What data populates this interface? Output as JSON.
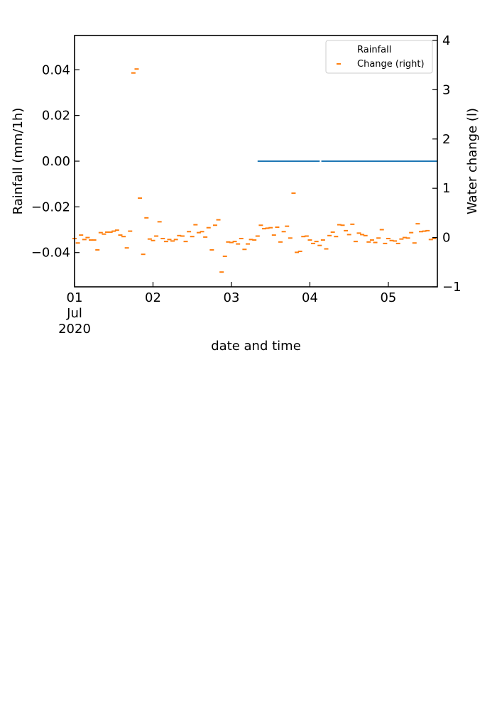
{
  "chart_data": {
    "type": "scatter",
    "title": "",
    "xlabel": "date and time",
    "x_tick_labels": [
      {
        "t": 0,
        "lines": [
          "01",
          "Jul",
          "2020"
        ]
      },
      {
        "t": 24,
        "lines": [
          "02"
        ]
      },
      {
        "t": 48,
        "lines": [
          "03"
        ]
      },
      {
        "t": 72,
        "lines": [
          "04"
        ]
      },
      {
        "t": 96,
        "lines": [
          "05"
        ]
      }
    ],
    "x_unit": "hours since 2020-07-01 00:00",
    "xlim": [
      0,
      111
    ],
    "left_axis": {
      "label": "Rainfall (mm/1h)",
      "ylim": [
        -0.055,
        0.055
      ],
      "ticks": [
        -0.04,
        -0.02,
        0.0,
        0.02,
        0.04
      ],
      "tick_labels": [
        "−0.04",
        "−0.02",
        "0.00",
        "0.02",
        "0.04"
      ]
    },
    "right_axis": {
      "label": "Water change (l)",
      "ylim": [
        -1.0,
        4.1
      ],
      "ticks": [
        -1,
        0,
        1,
        2,
        3,
        4
      ],
      "tick_labels": [
        "−1",
        "0",
        "1",
        "2",
        "3",
        "4"
      ]
    },
    "legend": {
      "position": "top-right",
      "entries": [
        {
          "label": "Rainfall",
          "marker": "none"
        },
        {
          "label": "Change (right)",
          "marker": "dash",
          "color": "#ff7f0e"
        }
      ]
    },
    "series": [
      {
        "name": "Rainfall",
        "axis": "left",
        "color": "#1f77b4",
        "segments": [
          {
            "x": [
              56,
              75
            ],
            "y": 0.0
          },
          {
            "x": [
              75.5,
              111
            ],
            "y": 0.0
          }
        ]
      },
      {
        "name": "Change (right)",
        "axis": "right",
        "color": "#ff7f0e",
        "x": [
          0,
          1,
          2,
          3,
          4,
          5,
          6,
          7,
          8,
          9,
          10,
          11,
          12,
          13,
          14,
          15,
          16,
          17,
          18,
          19,
          20,
          21,
          22,
          23,
          24,
          25,
          26,
          27,
          28,
          29,
          30,
          31,
          32,
          33,
          34,
          35,
          36,
          37,
          38,
          39,
          40,
          41,
          42,
          43,
          44,
          45,
          46,
          47,
          48,
          49,
          50,
          51,
          52,
          53,
          54,
          55,
          56,
          57,
          58,
          59,
          60,
          61,
          62,
          63,
          64,
          65,
          66,
          67,
          68,
          69,
          70,
          71,
          72,
          73,
          74,
          75,
          76,
          77,
          78,
          79,
          80,
          81,
          82,
          83,
          84,
          85,
          86,
          87,
          88,
          89,
          90,
          91,
          92,
          93,
          94,
          95,
          96,
          97,
          98,
          99,
          100,
          101,
          102,
          103,
          104,
          105,
          106,
          107,
          108,
          109,
          110
        ],
        "y": [
          -0.02,
          -0.11,
          0.05,
          -0.04,
          0.0,
          -0.05,
          -0.05,
          -0.25,
          0.1,
          0.07,
          0.11,
          0.11,
          0.13,
          0.15,
          0.05,
          0.02,
          -0.21,
          0.13,
          3.34,
          3.42,
          0.8,
          -0.34,
          0.4,
          -0.03,
          -0.06,
          0.03,
          0.32,
          -0.02,
          -0.08,
          -0.04,
          -0.07,
          -0.04,
          0.04,
          0.03,
          -0.08,
          0.12,
          0.02,
          0.26,
          0.1,
          0.12,
          0.01,
          0.2,
          -0.25,
          0.25,
          0.36,
          -0.7,
          -0.38,
          -0.09,
          -0.1,
          -0.08,
          -0.13,
          -0.02,
          -0.24,
          -0.13,
          -0.04,
          -0.05,
          0.03,
          0.25,
          0.18,
          0.19,
          0.2,
          0.05,
          0.21,
          -0.09,
          0.12,
          0.23,
          -0.01,
          0.9,
          -0.3,
          -0.28,
          0.02,
          0.03,
          -0.05,
          -0.12,
          -0.08,
          -0.16,
          -0.05,
          -0.23,
          0.04,
          0.11,
          0.02,
          0.26,
          0.25,
          0.14,
          0.06,
          0.27,
          -0.08,
          0.09,
          0.06,
          0.04,
          -0.09,
          -0.05,
          -0.1,
          -0.01,
          0.16,
          -0.12,
          -0.02,
          -0.06,
          -0.07,
          -0.12,
          -0.03,
          0.0,
          -0.01,
          0.1,
          -0.11,
          0.28,
          0.12,
          0.13,
          0.14,
          -0.04,
          -0.02
        ]
      }
    ]
  }
}
